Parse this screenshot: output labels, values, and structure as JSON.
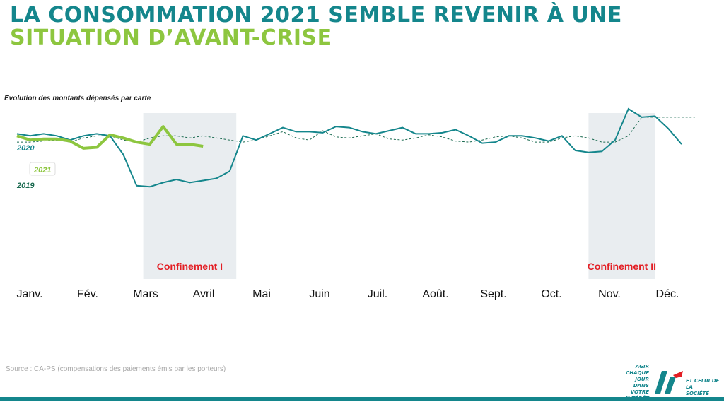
{
  "slide": {
    "title_line1": "LA CONSOMMATION 2021 SEMBLE REVENIR À UNE",
    "title_line2": "SITUATION D’AVANT-CRISE",
    "source": "Source : CA-PS (compensations des paiements émis par les porteurs)",
    "logo_text_left": [
      "AGIR CHAQUE JOUR",
      "DANS VOTRE",
      "INTÉRÊT"
    ],
    "logo_text_right": [
      "ET CELUI DE LA",
      "SOCIÉTÉ"
    ],
    "logo_mark": "CA"
  },
  "colors": {
    "primary": "#14868c",
    "accent": "#8dc63f",
    "series_2019": "#1a6a50",
    "lockdown_band": "#e9edf0",
    "lockdown_text": "#e31e24"
  },
  "chart_data": {
    "type": "line",
    "title": "Evolution des montants dépensés par carte",
    "xlabel": "",
    "ylabel": "",
    "months": [
      "Janv.",
      "Fév.",
      "Mars",
      "Avril",
      "Mai",
      "Juin",
      "Juil.",
      "Août.",
      "Sept.",
      "Oct.",
      "Nov.",
      "Déc."
    ],
    "y_axis_shown": false,
    "ylim": [
      30,
      110
    ],
    "grid": false,
    "legend": "inline labels at left",
    "x_unit": "week index (0 = first week of January)",
    "series": [
      {
        "name": "2020",
        "style": "solid",
        "x": [
          0,
          1,
          2,
          3,
          4,
          5,
          6,
          7,
          8,
          9,
          10,
          11,
          12,
          13,
          14,
          15,
          16,
          17,
          18,
          19,
          20,
          21,
          22,
          23,
          24,
          25,
          26,
          27,
          28,
          29,
          30,
          31,
          32,
          33,
          34,
          35,
          36,
          37,
          38,
          39,
          40,
          41,
          42,
          43,
          44,
          45,
          46,
          47,
          48,
          49,
          50,
          51
        ],
        "values": [
          100,
          99,
          100,
          99,
          97,
          99,
          100,
          99,
          90,
          75,
          74.5,
          76.5,
          78,
          76.5,
          77.5,
          78.5,
          82,
          99,
          97,
          100,
          103,
          101,
          101,
          100.5,
          103.5,
          103,
          101,
          100,
          101.5,
          103,
          100,
          100,
          100.5,
          102,
          99,
          95.5,
          96,
          99,
          99,
          98,
          96.5,
          99,
          92,
          91,
          91.5,
          97,
          112,
          108,
          108.5,
          102.5,
          95,
          null
        ]
      },
      {
        "name": "2021",
        "style": "thick",
        "x": [
          0,
          1,
          2,
          3,
          4,
          5,
          6,
          7,
          8,
          9,
          10,
          11,
          12,
          13,
          14,
          15
        ],
        "values": [
          99,
          97,
          97.5,
          97.5,
          96.5,
          93,
          93.5,
          99.5,
          98,
          96,
          95,
          103.5,
          95,
          95,
          94,
          null
        ]
      },
      {
        "name": "2019",
        "style": "dashed",
        "x": [
          0,
          1,
          2,
          3,
          4,
          5,
          6,
          7,
          8,
          9,
          10,
          11,
          12,
          13,
          14,
          15,
          16,
          17,
          18,
          19,
          20,
          21,
          22,
          23,
          24,
          25,
          26,
          27,
          28,
          29,
          30,
          31,
          32,
          33,
          34,
          35,
          36,
          37,
          38,
          39,
          40,
          41,
          42,
          43,
          44,
          45,
          46,
          47,
          48,
          49,
          50,
          51
        ],
        "values": [
          96,
          96,
          96.5,
          97,
          96,
          98,
          99,
          99,
          97,
          96,
          98,
          99,
          99,
          98,
          99,
          98,
          97,
          96,
          97,
          99,
          101,
          98,
          97,
          101.5,
          98.5,
          98,
          99,
          100,
          97.5,
          97,
          98,
          99.5,
          98.5,
          96.5,
          96,
          97,
          98.5,
          99,
          98,
          96,
          96,
          98,
          99,
          98,
          96,
          96,
          99,
          108,
          108,
          108,
          108,
          108
        ]
      }
    ],
    "annotations": [
      {
        "label": "Confinement I",
        "x_from": 9.5,
        "x_to": 16.5
      },
      {
        "label": "Confinement II",
        "x_from": 43,
        "x_to": 48
      }
    ]
  }
}
